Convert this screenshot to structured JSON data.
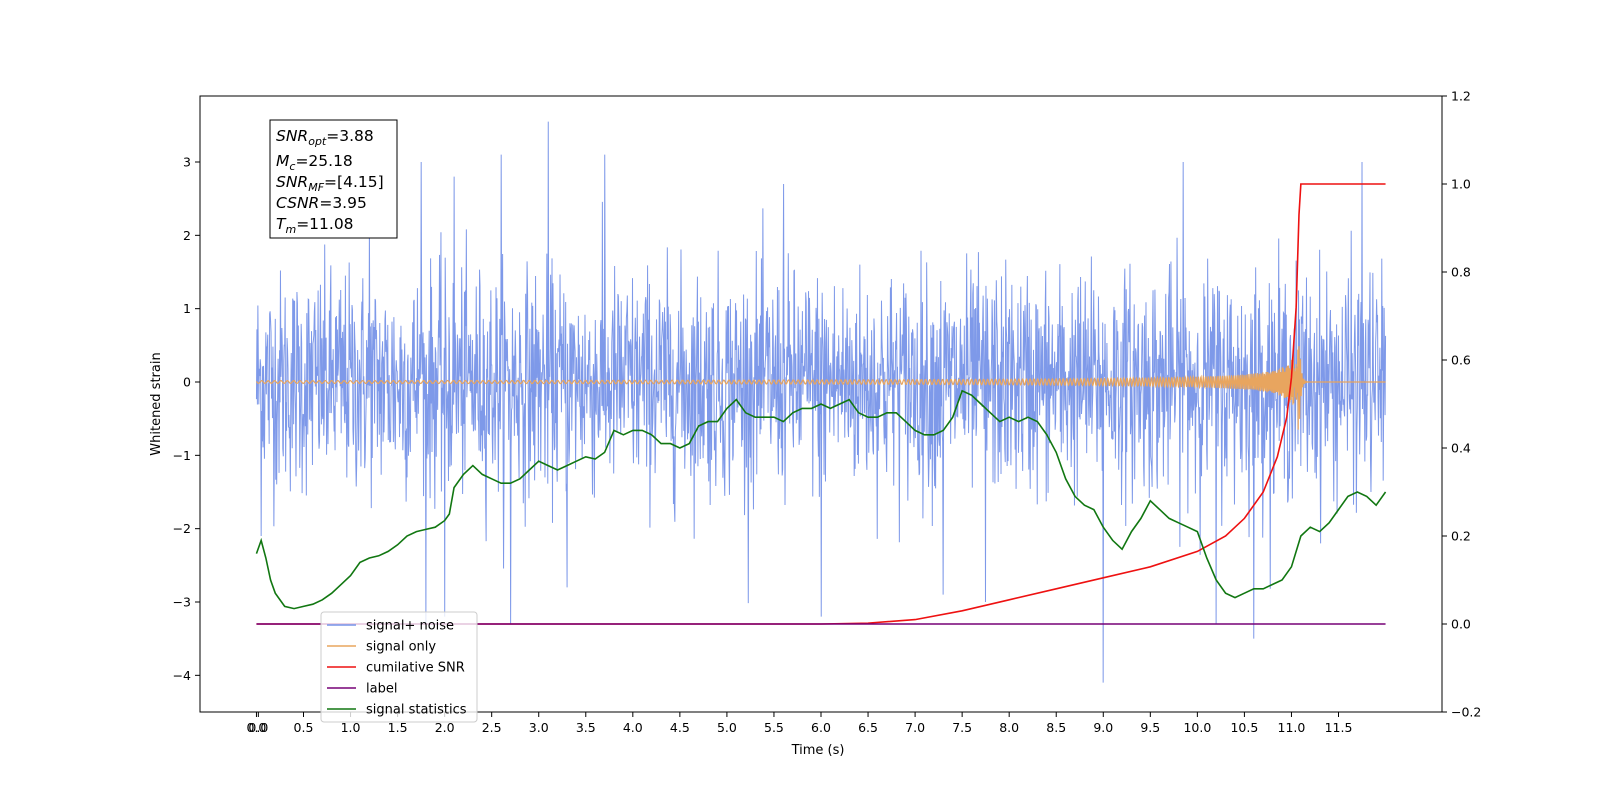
{
  "chart_data": {
    "type": "line",
    "xlabel": "Time (s)",
    "ylabel": "Whitened strain",
    "xlim": [
      -0.6,
      12.6
    ],
    "ylim": [
      -4.5,
      3.9
    ],
    "y2lim": [
      -0.2,
      1.2
    ],
    "x_ticks": [
      "0.0",
      "0.0",
      "0.5",
      "1.0",
      "1.5",
      "2.0",
      "2.5",
      "3.0",
      "3.5",
      "4.0",
      "4.5",
      "5.0",
      "5.5",
      "6.0",
      "6.5",
      "7.0",
      "7.5",
      "8.0",
      "8.5",
      "9.0",
      "9.5",
      "10.0",
      "10.5",
      "11.0",
      "11.5"
    ],
    "x_tick_values": [
      0.0,
      0.02,
      0.5,
      1.0,
      1.5,
      2.0,
      2.5,
      3.0,
      3.5,
      4.0,
      4.5,
      5.0,
      5.5,
      6.0,
      6.5,
      7.0,
      7.5,
      8.0,
      8.5,
      9.0,
      9.5,
      10.0,
      10.5,
      11.0,
      11.5
    ],
    "y_ticks": [
      3,
      2,
      1,
      0,
      -1,
      -2,
      -3,
      -4
    ],
    "y_tick_labels": [
      "3",
      "2",
      "1",
      "0",
      "−1",
      "−2",
      "−3",
      "−4"
    ],
    "y2_ticks": [
      1.2,
      1.0,
      0.8,
      0.6,
      0.4,
      0.2,
      0.0,
      -0.2
    ],
    "y2_tick_labels": [
      "1.2",
      "1.0",
      "0.8",
      "0.6",
      "0.4",
      "0.2",
      "0.0",
      "−0.2"
    ],
    "grid": false,
    "legend_placement": "lower-left",
    "stats_box": {
      "snr_opt": {
        "sym": "SNR",
        "sub": "opt",
        "val": "=3.88"
      },
      "mc": {
        "sym": "M",
        "sub": "c",
        "val": "=25.18"
      },
      "snr_mf": {
        "sym": "SNR",
        "sub": "MF",
        "val": "=[4.15]"
      },
      "csnr": {
        "sym": "CSNR",
        "sub": "",
        "val": "=3.95"
      },
      "tm": {
        "sym": "T",
        "sub": "m",
        "val": "=11.08"
      }
    },
    "series": [
      {
        "name": "signal+ noise",
        "color": "#7793e8",
        "axis": "left",
        "kind": "noise",
        "x_range": [
          0.0,
          12.0
        ],
        "envelope_typical": [
          -1.6,
          1.6
        ],
        "peaks": [
          [
            1.2,
            2.2
          ],
          [
            1.75,
            3.0
          ],
          [
            2.1,
            2.8
          ],
          [
            2.6,
            3.1
          ],
          [
            3.1,
            3.55
          ],
          [
            3.7,
            3.1
          ],
          [
            5.6,
            2.7
          ],
          [
            9.85,
            3.0
          ],
          [
            11.75,
            3.0
          ]
        ],
        "troughs": [
          [
            0.05,
            -2.1
          ],
          [
            1.8,
            -3.3
          ],
          [
            2.0,
            -3.2
          ],
          [
            2.7,
            -3.3
          ],
          [
            3.3,
            -2.8
          ],
          [
            6.0,
            -3.2
          ],
          [
            7.3,
            -2.9
          ],
          [
            7.75,
            -3.0
          ],
          [
            9.0,
            -4.1
          ],
          [
            10.2,
            -3.3
          ],
          [
            10.6,
            -3.5
          ]
        ]
      },
      {
        "name": "signal only",
        "color": "#e8a55f",
        "axis": "left",
        "kind": "chirp",
        "x_range": [
          0.0,
          12.0
        ],
        "merger_time": 11.08,
        "peak_amplitude": 0.8
      },
      {
        "name": "cumilative SNR",
        "color": "#ee1111",
        "axis": "right",
        "x": [
          0.0,
          6.0,
          6.5,
          7.0,
          7.5,
          8.0,
          8.5,
          9.0,
          9.5,
          10.0,
          10.3,
          10.5,
          10.7,
          10.85,
          10.95,
          11.0,
          11.05,
          11.08,
          11.1,
          11.2,
          11.5,
          11.8,
          12.0
        ],
        "y": [
          0.0,
          0.0,
          0.002,
          0.01,
          0.03,
          0.055,
          0.08,
          0.105,
          0.13,
          0.165,
          0.2,
          0.24,
          0.3,
          0.38,
          0.47,
          0.56,
          0.72,
          0.93,
          1.0,
          1.0,
          1.0,
          1.0,
          1.0
        ]
      },
      {
        "name": "label",
        "color": "#770077",
        "axis": "right",
        "x": [
          0.0,
          12.0
        ],
        "y": [
          0.0,
          0.0
        ]
      },
      {
        "name": "signal statistics",
        "color": "#117711",
        "axis": "right",
        "x": [
          0.0,
          0.05,
          0.1,
          0.15,
          0.2,
          0.3,
          0.4,
          0.5,
          0.6,
          0.7,
          0.8,
          0.9,
          1.0,
          1.1,
          1.2,
          1.3,
          1.4,
          1.5,
          1.6,
          1.7,
          1.8,
          1.9,
          2.0,
          2.05,
          2.1,
          2.2,
          2.3,
          2.4,
          2.5,
          2.6,
          2.7,
          2.8,
          2.9,
          3.0,
          3.1,
          3.2,
          3.3,
          3.4,
          3.5,
          3.6,
          3.7,
          3.8,
          3.9,
          4.0,
          4.1,
          4.2,
          4.3,
          4.4,
          4.5,
          4.6,
          4.7,
          4.8,
          4.9,
          5.0,
          5.1,
          5.2,
          5.3,
          5.4,
          5.5,
          5.6,
          5.7,
          5.8,
          5.9,
          6.0,
          6.1,
          6.2,
          6.3,
          6.4,
          6.5,
          6.6,
          6.7,
          6.8,
          6.9,
          7.0,
          7.1,
          7.2,
          7.3,
          7.4,
          7.5,
          7.6,
          7.7,
          7.8,
          7.9,
          8.0,
          8.1,
          8.2,
          8.3,
          8.4,
          8.5,
          8.6,
          8.7,
          8.8,
          8.9,
          9.0,
          9.1,
          9.2,
          9.3,
          9.4,
          9.5,
          9.6,
          9.7,
          9.8,
          9.9,
          10.0,
          10.1,
          10.2,
          10.3,
          10.4,
          10.5,
          10.6,
          10.7,
          10.8,
          10.9,
          11.0,
          11.1,
          11.2,
          11.3,
          11.4,
          11.5,
          11.6,
          11.7,
          11.8,
          11.9,
          12.0
        ],
        "y": [
          0.16,
          0.19,
          0.15,
          0.1,
          0.07,
          0.04,
          0.035,
          0.04,
          0.045,
          0.055,
          0.07,
          0.09,
          0.11,
          0.14,
          0.15,
          0.155,
          0.165,
          0.18,
          0.2,
          0.21,
          0.215,
          0.22,
          0.235,
          0.25,
          0.31,
          0.34,
          0.36,
          0.34,
          0.33,
          0.32,
          0.32,
          0.33,
          0.35,
          0.37,
          0.36,
          0.35,
          0.36,
          0.37,
          0.38,
          0.375,
          0.39,
          0.44,
          0.43,
          0.44,
          0.44,
          0.43,
          0.41,
          0.41,
          0.4,
          0.41,
          0.45,
          0.46,
          0.46,
          0.49,
          0.51,
          0.48,
          0.47,
          0.47,
          0.47,
          0.46,
          0.48,
          0.49,
          0.49,
          0.5,
          0.49,
          0.5,
          0.51,
          0.48,
          0.47,
          0.47,
          0.48,
          0.48,
          0.46,
          0.44,
          0.43,
          0.43,
          0.44,
          0.47,
          0.53,
          0.52,
          0.5,
          0.48,
          0.46,
          0.47,
          0.46,
          0.47,
          0.46,
          0.43,
          0.39,
          0.33,
          0.29,
          0.27,
          0.26,
          0.22,
          0.19,
          0.17,
          0.21,
          0.24,
          0.28,
          0.26,
          0.24,
          0.23,
          0.22,
          0.21,
          0.15,
          0.1,
          0.07,
          0.06,
          0.07,
          0.08,
          0.08,
          0.09,
          0.1,
          0.13,
          0.2,
          0.22,
          0.21,
          0.23,
          0.26,
          0.29,
          0.3,
          0.29,
          0.27,
          0.3
        ]
      }
    ]
  }
}
